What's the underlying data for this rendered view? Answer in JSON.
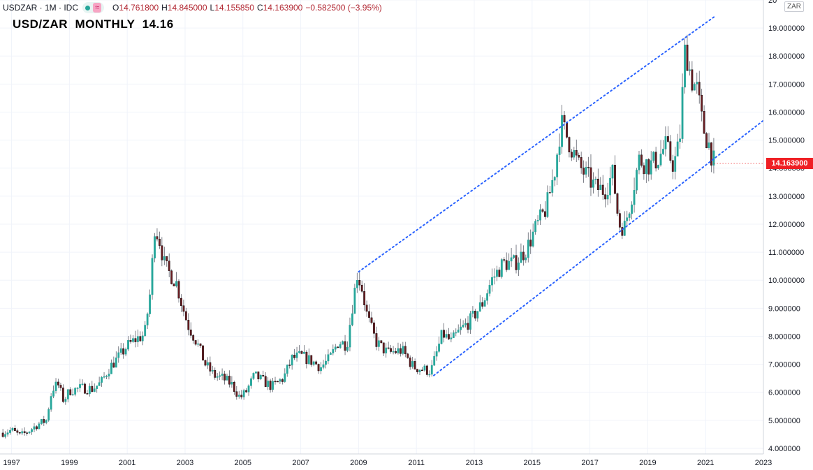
{
  "legend": {
    "symbol": "USDZAR · 1M · IDC",
    "wave_icon": "≈",
    "open_label": "O",
    "open": "14.761800",
    "high_label": "H",
    "high": "14.845000",
    "low_label": "L",
    "low": "14.155850",
    "close_label": "C",
    "close": "14.163900",
    "change": "−0.582500 (−3.95%)"
  },
  "overlay_title": "USD/ZAR  MONTHLY  14.16",
  "currency_badge": "ZAR",
  "last_price_tag": "14.163900",
  "colors": {
    "up": "#26a69a",
    "down": "#6b1d22",
    "channel": "#2962ff",
    "price_tag": "#ef1f24"
  },
  "chart_data": {
    "type": "candlestick",
    "ylim": [
      3.8,
      20.0
    ],
    "xlim": [
      1996.6,
      2023.0
    ],
    "y_ticks": [
      {
        "v": 4,
        "label": "4.000000"
      },
      {
        "v": 5,
        "label": "5.000000"
      },
      {
        "v": 6,
        "label": "6.000000"
      },
      {
        "v": 7,
        "label": "7.000000"
      },
      {
        "v": 8,
        "label": "8.000000"
      },
      {
        "v": 9,
        "label": "9.000000"
      },
      {
        "v": 10,
        "label": "10.000000"
      },
      {
        "v": 11,
        "label": "11.000000"
      },
      {
        "v": 12,
        "label": "12.000000"
      },
      {
        "v": 13,
        "label": "13.000000"
      },
      {
        "v": 14,
        "label": "14.000000"
      },
      {
        "v": 15,
        "label": "15.000000"
      },
      {
        "v": 16,
        "label": "16.000000"
      },
      {
        "v": 17,
        "label": "17.000000"
      },
      {
        "v": 18,
        "label": "18.000000"
      },
      {
        "v": 19,
        "label": "19.000000"
      },
      {
        "v": 20,
        "label": "20"
      }
    ],
    "x_ticks": [
      {
        "v": 1997,
        "label": "1997"
      },
      {
        "v": 1999,
        "label": "1999"
      },
      {
        "v": 2001,
        "label": "2001"
      },
      {
        "v": 2003,
        "label": "2003"
      },
      {
        "v": 2005,
        "label": "2005"
      },
      {
        "v": 2007,
        "label": "2007"
      },
      {
        "v": 2009,
        "label": "2009"
      },
      {
        "v": 2011,
        "label": "2011"
      },
      {
        "v": 2013,
        "label": "2013"
      },
      {
        "v": 2015,
        "label": "2015"
      },
      {
        "v": 2017,
        "label": "2017"
      },
      {
        "v": 2019,
        "label": "2019"
      },
      {
        "v": 2021,
        "label": "2021"
      },
      {
        "v": 2023,
        "label": "2023"
      }
    ],
    "last_price": 14.1639,
    "close_path": [
      [
        1996.7,
        4.55
      ],
      [
        1997.0,
        4.65
      ],
      [
        1997.3,
        4.45
      ],
      [
        1997.6,
        4.62
      ],
      [
        1997.9,
        4.85
      ],
      [
        1998.2,
        5.0
      ],
      [
        1998.4,
        6.1
      ],
      [
        1998.6,
        6.3
      ],
      [
        1998.8,
        5.7
      ],
      [
        1999.0,
        6.05
      ],
      [
        1999.4,
        6.15
      ],
      [
        1999.8,
        6.12
      ],
      [
        2000.1,
        6.35
      ],
      [
        2000.4,
        6.9
      ],
      [
        2000.7,
        7.25
      ],
      [
        2001.0,
        7.65
      ],
      [
        2001.3,
        7.9
      ],
      [
        2001.6,
        8.05
      ],
      [
        2001.8,
        9.6
      ],
      [
        2001.95,
        11.9
      ],
      [
        2002.1,
        11.5
      ],
      [
        2002.3,
        10.5
      ],
      [
        2002.5,
        10.2
      ],
      [
        2002.7,
        9.9
      ],
      [
        2002.9,
        9.1
      ],
      [
        2003.1,
        8.4
      ],
      [
        2003.4,
        7.8
      ],
      [
        2003.7,
        7.0
      ],
      [
        2004.0,
        6.6
      ],
      [
        2004.3,
        6.5
      ],
      [
        2004.6,
        6.3
      ],
      [
        2004.9,
        5.8
      ],
      [
        2005.1,
        6.0
      ],
      [
        2005.4,
        6.6
      ],
      [
        2005.7,
        6.4
      ],
      [
        2006.0,
        6.2
      ],
      [
        2006.4,
        6.5
      ],
      [
        2006.7,
        7.2
      ],
      [
        2007.0,
        7.3
      ],
      [
        2007.4,
        7.1
      ],
      [
        2007.7,
        6.9
      ],
      [
        2008.0,
        7.2
      ],
      [
        2008.3,
        7.8
      ],
      [
        2008.6,
        7.7
      ],
      [
        2008.8,
        9.2
      ],
      [
        2008.95,
        10.2
      ],
      [
        2009.1,
        9.8
      ],
      [
        2009.3,
        8.7
      ],
      [
        2009.6,
        7.8
      ],
      [
        2010.0,
        7.4
      ],
      [
        2010.5,
        7.5
      ],
      [
        2010.9,
        6.9
      ],
      [
        2011.3,
        6.8
      ],
      [
        2011.5,
        6.75
      ],
      [
        2011.7,
        7.4
      ],
      [
        2011.9,
        8.1
      ],
      [
        2012.2,
        7.8
      ],
      [
        2012.5,
        8.2
      ],
      [
        2012.9,
        8.6
      ],
      [
        2013.3,
        9.2
      ],
      [
        2013.6,
        10.0
      ],
      [
        2014.0,
        10.6
      ],
      [
        2014.4,
        10.6
      ],
      [
        2014.8,
        11.1
      ],
      [
        2015.1,
        11.8
      ],
      [
        2015.5,
        12.6
      ],
      [
        2015.8,
        14.0
      ],
      [
        2016.0,
        15.6
      ],
      [
        2016.3,
        14.9
      ],
      [
        2016.6,
        14.1
      ],
      [
        2016.9,
        13.7
      ],
      [
        2017.2,
        13.3
      ],
      [
        2017.5,
        13.2
      ],
      [
        2017.8,
        13.8
      ],
      [
        2018.0,
        12.0
      ],
      [
        2018.2,
        11.9
      ],
      [
        2018.4,
        12.8
      ],
      [
        2018.7,
        14.3
      ],
      [
        2018.9,
        14.2
      ],
      [
        2019.1,
        14.1
      ],
      [
        2019.4,
        14.4
      ],
      [
        2019.6,
        14.8
      ],
      [
        2019.9,
        14.1
      ],
      [
        2020.1,
        14.9
      ],
      [
        2020.3,
        18.4
      ],
      [
        2020.5,
        17.2
      ],
      [
        2020.7,
        16.8
      ],
      [
        2020.9,
        15.5
      ],
      [
        2021.1,
        14.9
      ],
      [
        2021.3,
        14.16
      ]
    ],
    "channel_lines": [
      {
        "name": "upper",
        "x": [
          2009.0,
          2021.3
        ],
        "y": [
          10.3,
          19.4
        ]
      },
      {
        "name": "lower",
        "x": [
          2011.6,
          2023.0
        ],
        "y": [
          6.6,
          15.7
        ]
      }
    ]
  }
}
